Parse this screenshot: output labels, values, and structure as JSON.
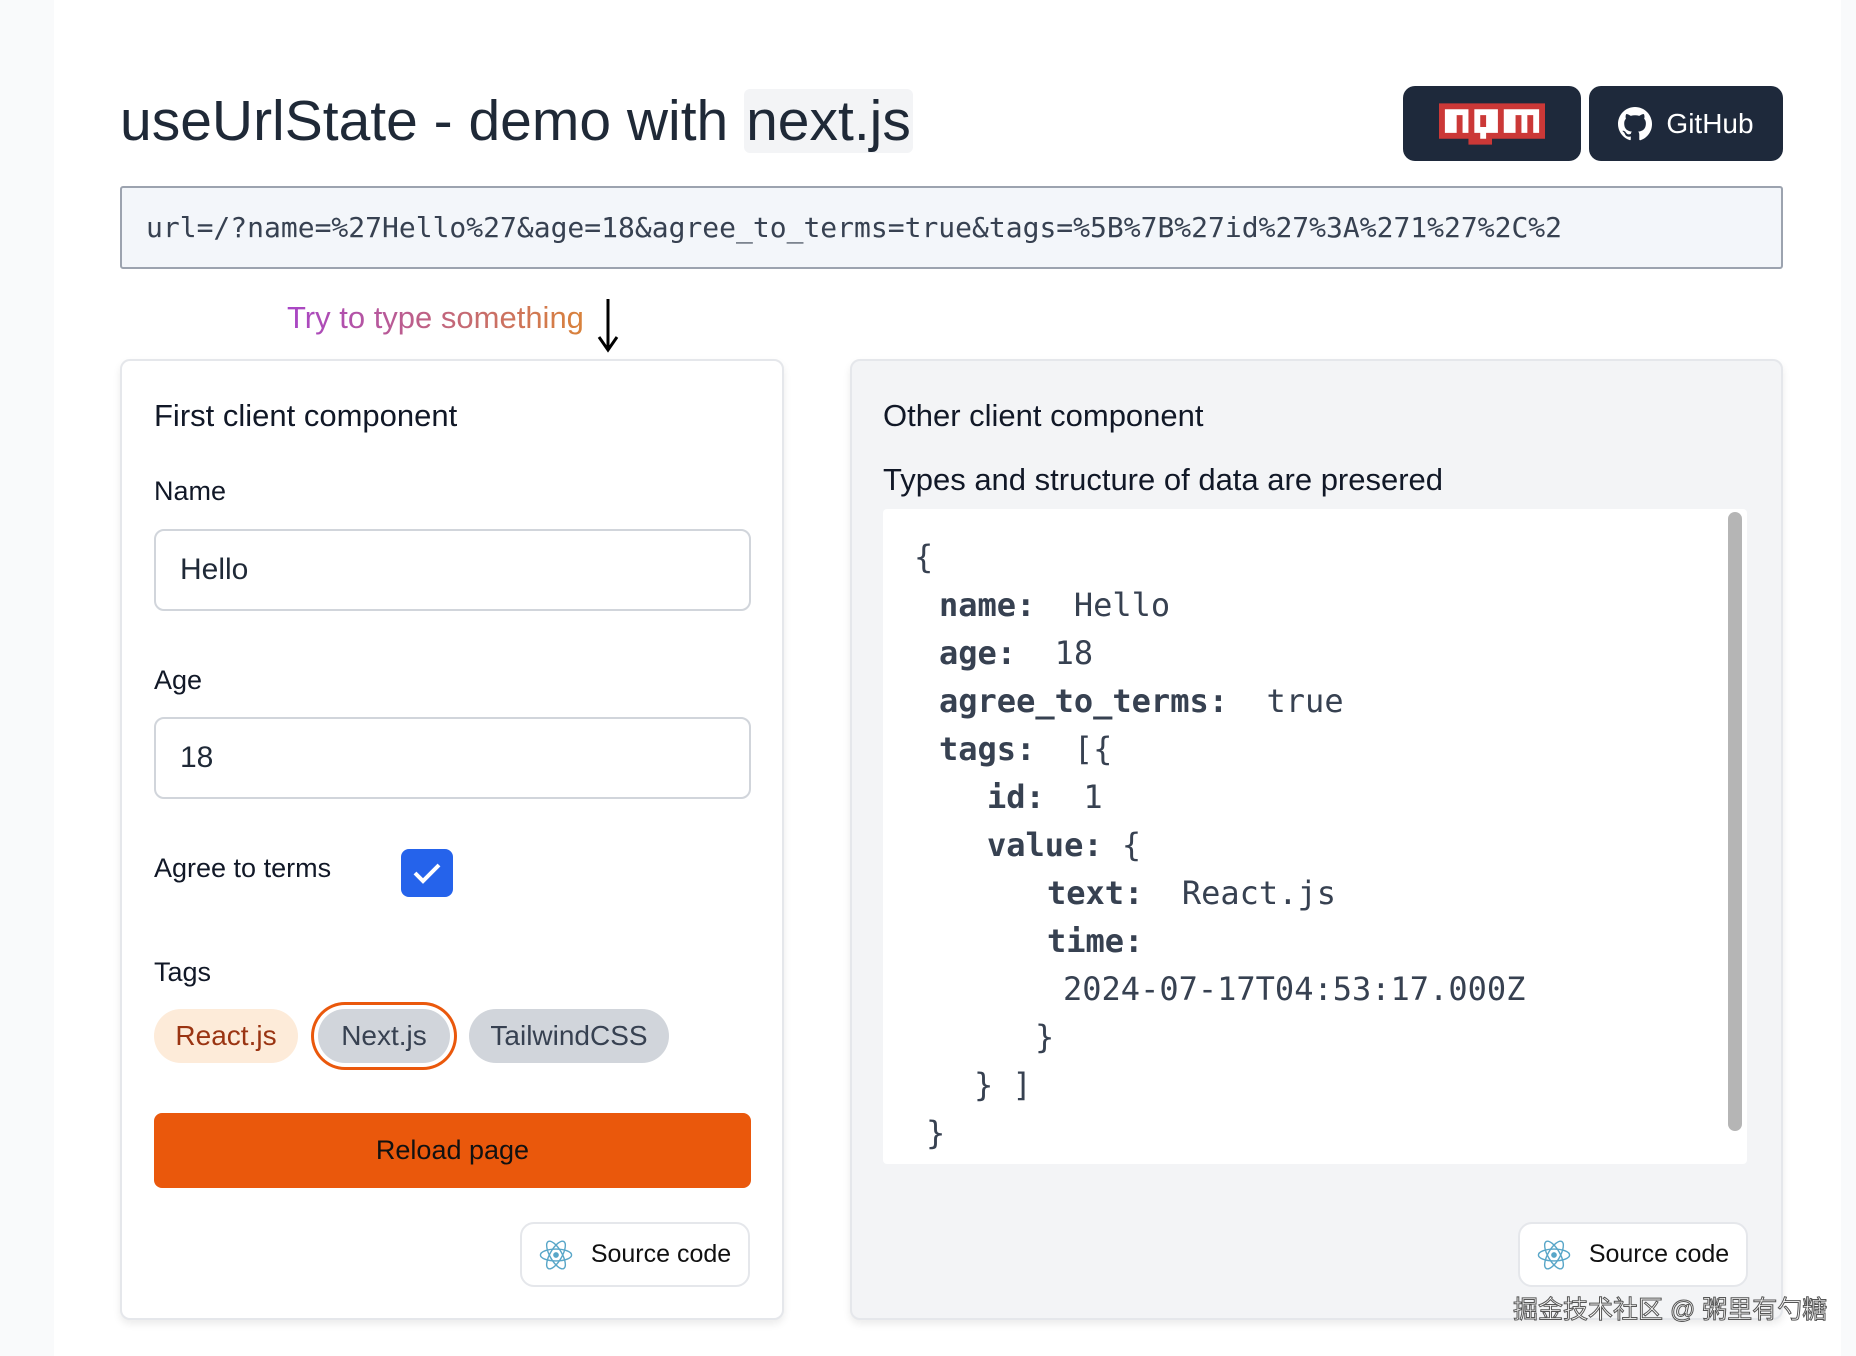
{
  "header": {
    "title_prefix": "useUrlState - demo with ",
    "title_code": "next.js",
    "npm_label": "npm",
    "github_label": "GitHub"
  },
  "url_bar": {
    "value": "url=/?name=%27Hello%27&age=18&agree_to_terms=true&tags=%5B%7B%27id%27%3A%271%27%2C%2"
  },
  "hint": "Try to type something",
  "first": {
    "title": "First client component",
    "name_label": "Name",
    "name_value": "Hello",
    "age_label": "Age",
    "age_value": "18",
    "agree_label": "Agree to terms",
    "agree_checked": true,
    "tags_label": "Tags",
    "tags": [
      {
        "label": "React.js",
        "state": "selected"
      },
      {
        "label": "Next.js",
        "state": "focused"
      },
      {
        "label": "TailwindCSS",
        "state": "default"
      }
    ],
    "reload_label": "Reload page",
    "source_label": "Source code"
  },
  "other": {
    "title": "Other client component",
    "subtitle": "Types and structure of data are presered",
    "code": {
      "open": "{",
      "name_key": "name:",
      "name_val": "Hello",
      "age_key": "age:",
      "age_val": "18",
      "agree_key": "agree_to_terms:",
      "agree_val": "true",
      "tags_key": "tags:",
      "tags_open": "[{",
      "id_key": "id:",
      "id_val": "1",
      "value_key": "value:",
      "value_open": "{",
      "text_key": "text:",
      "text_val": "React.js",
      "time_key": "time:",
      "time_val": "2024-07-17T04:53:17.000Z",
      "value_close": "}",
      "tags_close": "} ]",
      "close": "}"
    },
    "source_label": "Source code"
  },
  "watermark": "掘金技术社区 @ 粥里有勺糖",
  "colors": {
    "accent": "#ea580c",
    "checkbox": "#2563eb",
    "dark_button": "#1e293b",
    "npm_red": "#cb3837"
  }
}
